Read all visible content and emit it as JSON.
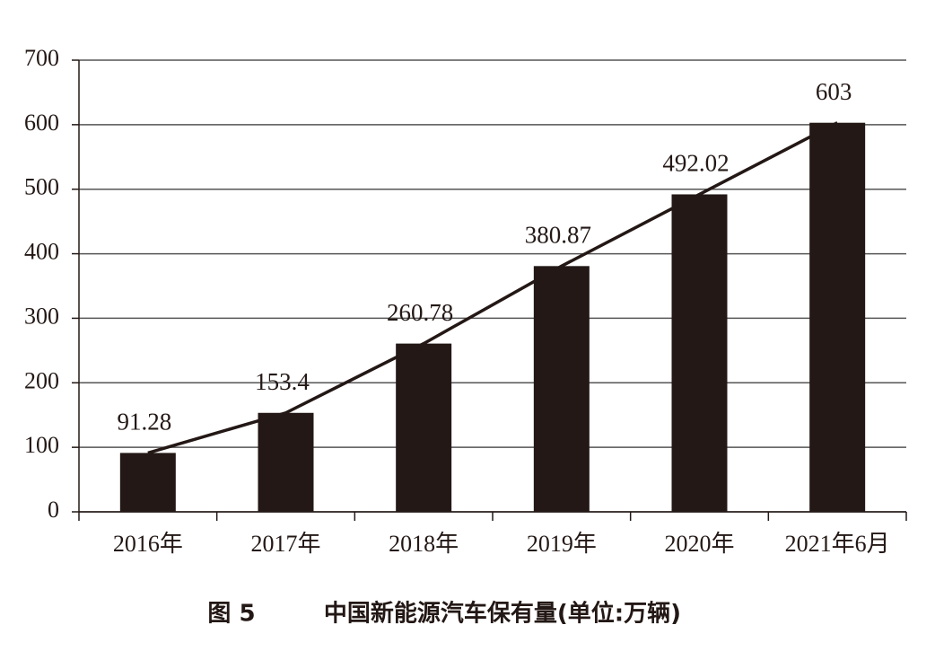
{
  "chart_data": {
    "type": "bar",
    "caption_label": "图 5",
    "title": "中国新能源汽车保有量(单位:万辆)",
    "categories": [
      "2016年",
      "2017年",
      "2018年",
      "2019年",
      "2020年",
      "2021年6月"
    ],
    "values": [
      91.28,
      153.4,
      260.78,
      380.87,
      492.02,
      603
    ],
    "color": "#231815",
    "line": true,
    "ylim": [
      0,
      700
    ],
    "yticks": [
      0,
      100,
      200,
      300,
      400,
      500,
      600,
      700
    ],
    "grid": true
  }
}
